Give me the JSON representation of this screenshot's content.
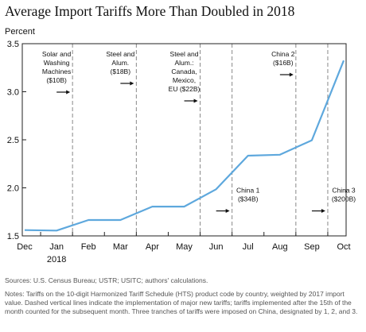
{
  "chart_data": {
    "type": "line",
    "title": "Average Import Tariffs More Than Doubled in 2018",
    "ylabel": "Percent",
    "xlabel": "",
    "categories": [
      "Dec",
      "Jan",
      "Feb",
      "Mar",
      "Apr",
      "May",
      "Jun",
      "Jul",
      "Aug",
      "Sep",
      "Oct"
    ],
    "year_label": "2018",
    "year_label_under": "Jan",
    "ylim": [
      1.5,
      3.5
    ],
    "yticks": [
      "1.5",
      "2.0",
      "2.5",
      "3.0",
      "3.5"
    ],
    "ytick_values": [
      1.5,
      2.0,
      2.5,
      3.0,
      3.5
    ],
    "series": [
      {
        "values": [
          1.56,
          1.555,
          1.665,
          1.665,
          1.805,
          1.805,
          1.985,
          2.335,
          2.345,
          2.495,
          3.325
        ],
        "color": "#5ea8dd"
      }
    ],
    "grid": false,
    "legend": "none",
    "annotations": [
      {
        "category": "Feb",
        "lines": [
          "Solar and",
          "Washing",
          "Machines",
          "($10B)"
        ],
        "position": "top"
      },
      {
        "category": "Apr",
        "lines": [
          "Steel and",
          "Alum.",
          "($18B)"
        ],
        "position": "top"
      },
      {
        "category": "Jun",
        "lines": [
          "Steel and",
          "Alum.:",
          "Canada,",
          "Mexico,",
          "EU ($22B)"
        ],
        "position": "top"
      },
      {
        "category": "Jul",
        "lines": [
          "China 1",
          "($34B)"
        ],
        "position": "bottom"
      },
      {
        "category": "Sep",
        "lines": [
          "China 2",
          "($16B)"
        ],
        "position": "top-right"
      },
      {
        "category": "Oct",
        "lines": [
          "China 3",
          "($200B)"
        ],
        "position": "bottom"
      }
    ],
    "line_color": "#5ea8dd",
    "dashed_line_color": "#888888"
  },
  "footer": {
    "sources": "Sources: U.S. Census Bureau; USTR; USITC; authors' calculations.",
    "notes": "Notes: Tariffs on the 10-digit Harmonized Tariff Schedule (HTS) product code by country, weighted by 2017 import value. Dashed vertical lines indicate the implementation of major new tariffs; tariffs implemented after the 15th of the month counted for the subsequent month. Three tranches of tariffs were imposed on China, designated by 1, 2, and 3."
  }
}
